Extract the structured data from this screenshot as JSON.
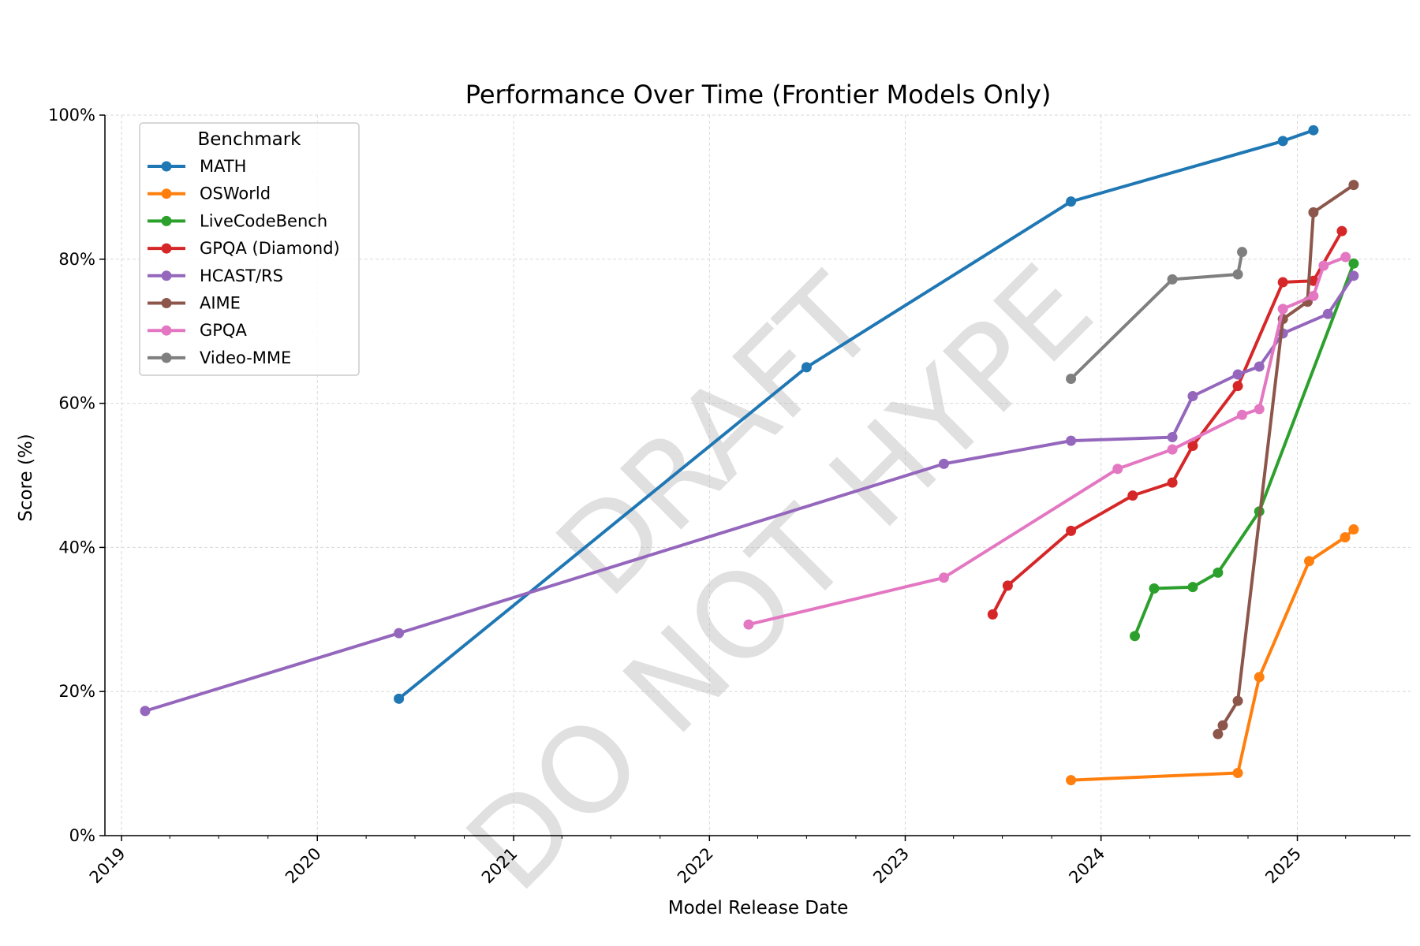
{
  "chart_data": {
    "type": "line",
    "title": "Performance Over Time (Frontier Models Only)",
    "xlabel": "Model Release Date",
    "ylabel": "Score (%)",
    "xlim": [
      "2018-12-01",
      "2025-07-31"
    ],
    "ylim": [
      0,
      100
    ],
    "x_ticks": [
      "2019",
      "2020",
      "2021",
      "2022",
      "2023",
      "2024",
      "2025"
    ],
    "y_ticks": [
      "0%",
      "20%",
      "40%",
      "60%",
      "80%",
      "100%"
    ],
    "grid": true,
    "legend": {
      "title": "Benchmark",
      "placement": "upper-left"
    },
    "watermark": [
      "DRAFT",
      "DO NOT HYPE"
    ],
    "series": [
      {
        "name": "MATH",
        "color": "#1f77b4",
        "points": [
          [
            "2020-06-01",
            19
          ],
          [
            "2022-07-01",
            65
          ],
          [
            "2023-11-06",
            88
          ],
          [
            "2024-12-05",
            96.4
          ],
          [
            "2025-01-31",
            97.9
          ]
        ]
      },
      {
        "name": "OSWorld",
        "color": "#ff7f0e",
        "points": [
          [
            "2023-11-06",
            7.7
          ],
          [
            "2024-09-12",
            8.7
          ],
          [
            "2024-10-22",
            22
          ],
          [
            "2025-01-23",
            38.1
          ],
          [
            "2025-03-31",
            41.4
          ],
          [
            "2025-04-16",
            42.5
          ]
        ]
      },
      {
        "name": "LiveCodeBench",
        "color": "#2ca02c",
        "points": [
          [
            "2024-03-04",
            27.7
          ],
          [
            "2024-04-09",
            34.3
          ],
          [
            "2024-06-20",
            34.5
          ],
          [
            "2024-08-06",
            36.5
          ],
          [
            "2024-10-22",
            45
          ],
          [
            "2025-04-16",
            79.4
          ]
        ]
      },
      {
        "name": "GPQA (Diamond)",
        "color": "#d62728",
        "points": [
          [
            "2023-06-13",
            30.7
          ],
          [
            "2023-07-11",
            34.7
          ],
          [
            "2023-11-06",
            42.3
          ],
          [
            "2024-02-29",
            47.2
          ],
          [
            "2024-05-13",
            49
          ],
          [
            "2024-06-20",
            54.1
          ],
          [
            "2024-09-12",
            62.4
          ],
          [
            "2024-12-05",
            76.8
          ],
          [
            "2025-01-31",
            77
          ],
          [
            "2025-03-25",
            83.9
          ]
        ]
      },
      {
        "name": "HCAST/RS",
        "color": "#9467bd",
        "points": [
          [
            "2019-02-14",
            17.3
          ],
          [
            "2020-06-01",
            28.1
          ],
          [
            "2023-03-14",
            51.6
          ],
          [
            "2023-11-06",
            54.8
          ],
          [
            "2024-05-13",
            55.3
          ],
          [
            "2024-06-20",
            61
          ],
          [
            "2024-09-12",
            64
          ],
          [
            "2024-10-22",
            65.1
          ],
          [
            "2024-12-05",
            69.7
          ],
          [
            "2025-02-27",
            72.4
          ],
          [
            "2025-04-16",
            77.7
          ]
        ]
      },
      {
        "name": "AIME",
        "color": "#8c564b",
        "points": [
          [
            "2024-08-06",
            14.1
          ],
          [
            "2024-08-15",
            15.3
          ],
          [
            "2024-09-12",
            18.7
          ],
          [
            "2024-12-05",
            71.7
          ],
          [
            "2025-01-20",
            74.1
          ],
          [
            "2025-01-31",
            86.5
          ],
          [
            "2025-04-16",
            90.3
          ]
        ]
      },
      {
        "name": "GPQA",
        "color": "#e377c2",
        "points": [
          [
            "2022-03-15",
            29.3
          ],
          [
            "2023-03-14",
            35.8
          ],
          [
            "2024-02-01",
            50.9
          ],
          [
            "2024-05-13",
            53.6
          ],
          [
            "2024-09-20",
            58.4
          ],
          [
            "2024-10-22",
            59.2
          ],
          [
            "2024-12-05",
            73.1
          ],
          [
            "2025-01-31",
            74.9
          ],
          [
            "2025-02-19",
            79.1
          ],
          [
            "2025-04-01",
            80.3
          ]
        ]
      },
      {
        "name": "Video-MME",
        "color": "#7f7f7f",
        "points": [
          [
            "2023-11-06",
            63.4
          ],
          [
            "2024-05-13",
            77.2
          ],
          [
            "2024-09-12",
            77.9
          ],
          [
            "2024-09-20",
            81
          ]
        ]
      }
    ]
  }
}
